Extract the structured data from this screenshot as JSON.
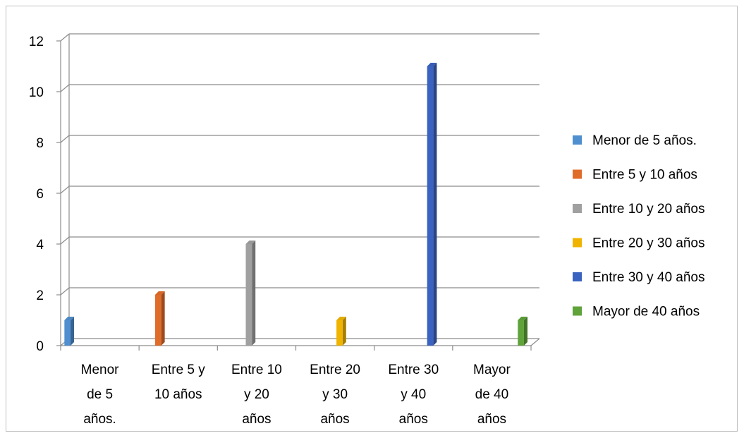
{
  "chart_data": {
    "type": "bar",
    "title": "",
    "xlabel": "",
    "ylabel": "",
    "ylim": [
      0,
      12
    ],
    "yticks": [
      0,
      2,
      4,
      6,
      8,
      10,
      12
    ],
    "grid": true,
    "legend_position": "right",
    "categories": [
      [
        "Menor",
        "de 5",
        "años."
      ],
      [
        "Entre 5 y",
        "10 años"
      ],
      [
        "Entre 10",
        "y 20",
        "años"
      ],
      [
        "Entre 20",
        "y 30",
        "años"
      ],
      [
        "Entre 30",
        "y 40",
        "años"
      ],
      [
        "Mayor",
        "de 40",
        "años"
      ]
    ],
    "series": [
      {
        "name": "Menor de 5 años.",
        "color": "#4f8fcf",
        "values": [
          1,
          null,
          null,
          null,
          null,
          null
        ]
      },
      {
        "name": "Entre 5 y 10 años",
        "color": "#e06c2a",
        "values": [
          null,
          2,
          null,
          null,
          null,
          null
        ]
      },
      {
        "name": "Entre 10 y 20 años",
        "color": "#a0a0a0",
        "values": [
          null,
          null,
          4,
          null,
          null,
          null
        ]
      },
      {
        "name": "Entre 20 y 30 años",
        "color": "#f0b400",
        "values": [
          null,
          null,
          null,
          1,
          null,
          null
        ]
      },
      {
        "name": "Entre 30 y 40 años",
        "color": "#3a62c0",
        "values": [
          null,
          null,
          null,
          null,
          11,
          null
        ]
      },
      {
        "name": "Mayor de 40 años",
        "color": "#5fa33a",
        "values": [
          null,
          null,
          null,
          null,
          null,
          1
        ]
      }
    ]
  }
}
